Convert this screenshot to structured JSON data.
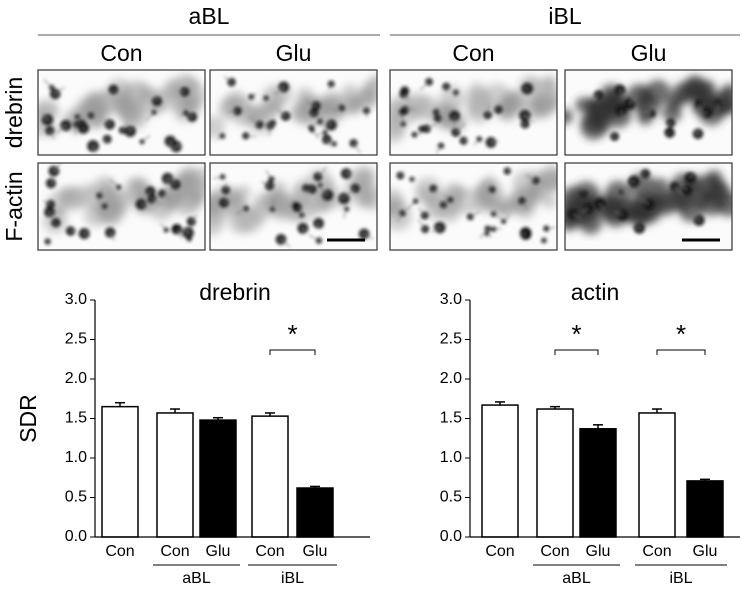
{
  "figure": {
    "row_labels": [
      "drebrin",
      "F-actin"
    ],
    "groups": [
      {
        "label": "aBL",
        "columns": [
          "Con",
          "Glu"
        ]
      },
      {
        "label": "iBL",
        "columns": [
          "Con",
          "Glu"
        ]
      }
    ]
  },
  "chart_data": [
    {
      "type": "bar",
      "title": "drebrin",
      "ylabel": "SDR",
      "categories": [
        "Con",
        "Con",
        "Glu",
        "Con",
        "Glu"
      ],
      "values": [
        1.65,
        1.57,
        1.48,
        1.53,
        0.62
      ],
      "errors": [
        0.05,
        0.05,
        0.03,
        0.04,
        0.02
      ],
      "colors": [
        "#ffffff",
        "#ffffff",
        "#000000",
        "#ffffff",
        "#000000"
      ],
      "groups": [
        {
          "label": "aBL",
          "categories": [
            1,
            2
          ]
        },
        {
          "label": "iBL",
          "categories": [
            3,
            4
          ]
        }
      ],
      "annotations": [
        {
          "text": "*",
          "categories": [
            3,
            4
          ]
        }
      ],
      "ylim": [
        0,
        3
      ],
      "yticks": [
        {
          "value": 0,
          "label": "0.0"
        },
        {
          "value": 0.5,
          "label": "0.5"
        },
        {
          "value": 1,
          "label": "1.0"
        },
        {
          "value": 1.5,
          "label": "1.5"
        },
        {
          "value": 2,
          "label": "2.0"
        },
        {
          "value": 2.5,
          "label": "2.5"
        },
        {
          "value": 3,
          "label": "3.0"
        }
      ]
    },
    {
      "type": "bar",
      "title": "actin",
      "categories": [
        "Con",
        "Con",
        "Glu",
        "Con",
        "Glu"
      ],
      "values": [
        1.67,
        1.62,
        1.37,
        1.57,
        0.71
      ],
      "errors": [
        0.04,
        0.03,
        0.05,
        0.05,
        0.02
      ],
      "colors": [
        "#ffffff",
        "#ffffff",
        "#000000",
        "#ffffff",
        "#000000"
      ],
      "groups": [
        {
          "label": "aBL",
          "categories": [
            1,
            2
          ]
        },
        {
          "label": "iBL",
          "categories": [
            3,
            4
          ]
        }
      ],
      "annotations": [
        {
          "text": "*",
          "categories": [
            1,
            2
          ]
        },
        {
          "text": "*",
          "categories": [
            3,
            4
          ]
        }
      ],
      "ylim": [
        0,
        3
      ],
      "yticks": [
        {
          "value": 0,
          "label": "0.0"
        },
        {
          "value": 0.5,
          "label": "0.5"
        },
        {
          "value": 1,
          "label": "1.0"
        },
        {
          "value": 1.5,
          "label": "1.5"
        },
        {
          "value": 2,
          "label": "2.0"
        },
        {
          "value": 2.5,
          "label": "2.5"
        },
        {
          "value": 3,
          "label": "3.0"
        }
      ]
    }
  ]
}
